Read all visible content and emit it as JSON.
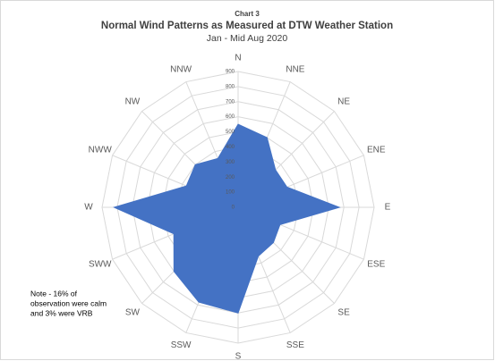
{
  "chart_data": {
    "type": "radar",
    "supertitle": "Chart 3",
    "title": "Normal Wind Patterns as Measured at DTW Weather Station",
    "subtitle": "Jan - Mid Aug 2020",
    "categories": [
      "N",
      "NNE",
      "NE",
      "ENE",
      "E",
      "ESE",
      "SE",
      "SSE",
      "S",
      "SSW",
      "SW",
      "SWW",
      "W",
      "NWW",
      "NW",
      "NNW"
    ],
    "values": [
      550,
      500,
      350,
      350,
      670,
      300,
      330,
      350,
      700,
      680,
      600,
      460,
      820,
      370,
      400,
      350
    ],
    "color": "#4472c4",
    "rlim": [
      0,
      900
    ],
    "rticks": [
      0,
      100,
      200,
      300,
      400,
      500,
      600,
      700,
      800,
      900
    ],
    "grid": true,
    "note": [
      "Note - 16% of",
      "observation were calm",
      "and 3% were VRB"
    ]
  }
}
